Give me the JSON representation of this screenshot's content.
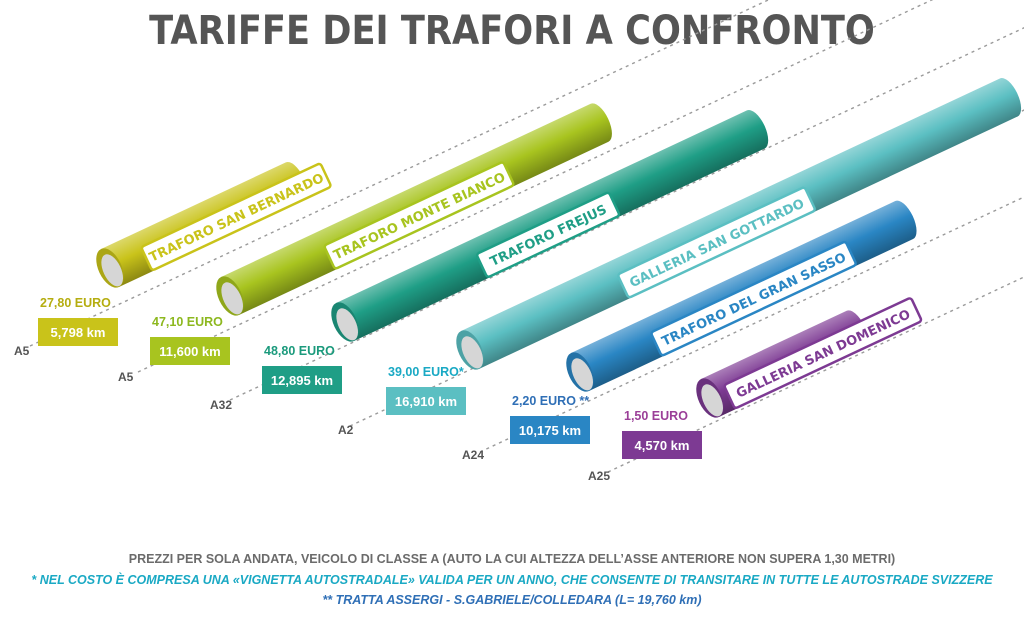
{
  "title": "TARIFFE DEI TRAFORI A CONFRONTO",
  "chart_data": {
    "type": "bar",
    "title": "TARIFFE DEI TRAFORI A CONFRONTO",
    "categories": [
      "TRAFORO SAN BERNARDO",
      "TRAFORO MONTE BIANCO",
      "TRAFORO FREJUS",
      "GALLERIA SAN GOTTARDO",
      "TRAFORO DEL GRAN SASSO",
      "GALLERIA SAN DOMENICO"
    ],
    "highways": [
      "A5",
      "A5",
      "A32",
      "A2",
      "A24",
      "A25"
    ],
    "price_labels": [
      "27,80 EURO",
      "47,10 EURO",
      "48,80 EURO",
      "39,00 EURO*",
      "2,20 EURO **",
      "1,50 EURO"
    ],
    "length_labels": [
      "5,798 km",
      "11,600 km",
      "12,895 km",
      "16,910 km",
      "10,175 km",
      "4,570 km"
    ],
    "series": [
      {
        "name": "",
        "values": [
          5.798,
          11.6,
          12.895,
          16.91,
          10.175,
          4.57
        ]
      }
    ],
    "prices_euro": [
      27.8,
      47.1,
      48.8,
      39.0,
      2.2,
      1.5
    ],
    "colors": [
      "#c9c31a",
      "#a8c41f",
      "#1f9e86",
      "#5bbfc2",
      "#2a86c4",
      "#7d3a93"
    ],
    "label_colors": [
      "#b5ad10",
      "#8db81f",
      "#1b9a7c",
      "#1aa9c4",
      "#2f6fb6",
      "#9b3f98"
    ],
    "legend": "none",
    "grid": false
  },
  "notes": {
    "line1": "PREZZI PER SOLA ANDATA, VEICOLO DI CLASSE A (AUTO LA CUI ALTEZZA DELL’ASSE ANTERIORE NON SUPERA 1,30 METRI)",
    "line2": "* NEL COSTO È COMPRESA UNA «VIGNETTA AUTOSTRADALE» VALIDA PER UN ANNO, CHE CONSENTE DI TRANSITARE IN TUTTE LE AUTOSTRADE SVIZZERE",
    "line3": "** TRATTA ASSERGI  -  S.GABRIELE/COLLEDARA (L= 19,760 km)"
  }
}
